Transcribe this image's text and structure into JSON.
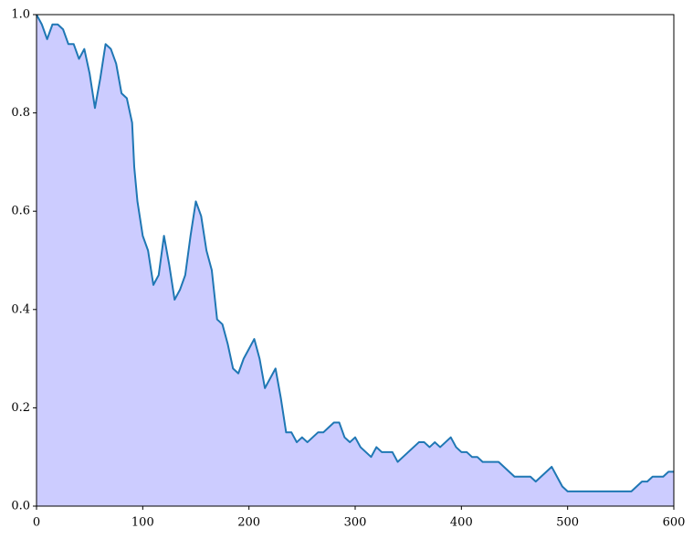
{
  "chart_data": {
    "type": "area",
    "x": [
      0,
      5,
      10,
      15,
      20,
      25,
      30,
      35,
      40,
      45,
      50,
      55,
      60,
      65,
      70,
      75,
      80,
      85,
      90,
      92,
      95,
      100,
      105,
      110,
      115,
      120,
      125,
      130,
      135,
      140,
      145,
      150,
      155,
      160,
      165,
      170,
      175,
      180,
      185,
      190,
      195,
      200,
      205,
      210,
      215,
      220,
      225,
      230,
      235,
      240,
      245,
      250,
      255,
      260,
      265,
      270,
      275,
      280,
      285,
      290,
      295,
      300,
      305,
      310,
      315,
      320,
      325,
      330,
      335,
      340,
      345,
      350,
      355,
      360,
      365,
      370,
      375,
      380,
      385,
      390,
      395,
      400,
      405,
      410,
      415,
      420,
      425,
      430,
      435,
      440,
      445,
      450,
      455,
      460,
      465,
      470,
      475,
      480,
      485,
      490,
      495,
      500,
      510,
      520,
      530,
      540,
      550,
      555,
      560,
      565,
      570,
      575,
      580,
      585,
      590,
      595,
      600
    ],
    "values": [
      1.0,
      0.98,
      0.95,
      0.98,
      0.98,
      0.97,
      0.94,
      0.94,
      0.91,
      0.93,
      0.88,
      0.81,
      0.87,
      0.94,
      0.93,
      0.9,
      0.84,
      0.83,
      0.78,
      0.69,
      0.62,
      0.55,
      0.52,
      0.45,
      0.47,
      0.55,
      0.49,
      0.42,
      0.44,
      0.47,
      0.55,
      0.62,
      0.59,
      0.52,
      0.48,
      0.38,
      0.37,
      0.33,
      0.28,
      0.27,
      0.3,
      0.32,
      0.34,
      0.3,
      0.24,
      0.26,
      0.28,
      0.22,
      0.15,
      0.15,
      0.13,
      0.14,
      0.13,
      0.14,
      0.15,
      0.15,
      0.16,
      0.17,
      0.17,
      0.14,
      0.13,
      0.14,
      0.12,
      0.11,
      0.1,
      0.12,
      0.11,
      0.11,
      0.11,
      0.09,
      0.1,
      0.11,
      0.12,
      0.13,
      0.13,
      0.12,
      0.13,
      0.12,
      0.13,
      0.14,
      0.12,
      0.11,
      0.11,
      0.1,
      0.1,
      0.09,
      0.09,
      0.09,
      0.09,
      0.08,
      0.07,
      0.06,
      0.06,
      0.06,
      0.06,
      0.05,
      0.06,
      0.07,
      0.08,
      0.06,
      0.04,
      0.03,
      0.03,
      0.03,
      0.03,
      0.03,
      0.03,
      0.03,
      0.03,
      0.04,
      0.05,
      0.05,
      0.06,
      0.06,
      0.06,
      0.07,
      0.07
    ],
    "color": "#1f77b4",
    "fill_color": "#ccccff",
    "xlim": [
      0,
      600
    ],
    "xticks": [
      0,
      100,
      200,
      300,
      400,
      500,
      600
    ],
    "ylim": [
      0,
      1
    ],
    "yticks": [
      {
        "value": 0,
        "label": "0.0"
      },
      {
        "value": 0.2,
        "label": "0.2"
      },
      {
        "value": 0.4,
        "label": "0.4"
      },
      {
        "value": 0.6,
        "label": "0.6"
      },
      {
        "value": 0.8,
        "label": "0.8"
      },
      {
        "value": 1,
        "label": "1.0"
      }
    ]
  }
}
